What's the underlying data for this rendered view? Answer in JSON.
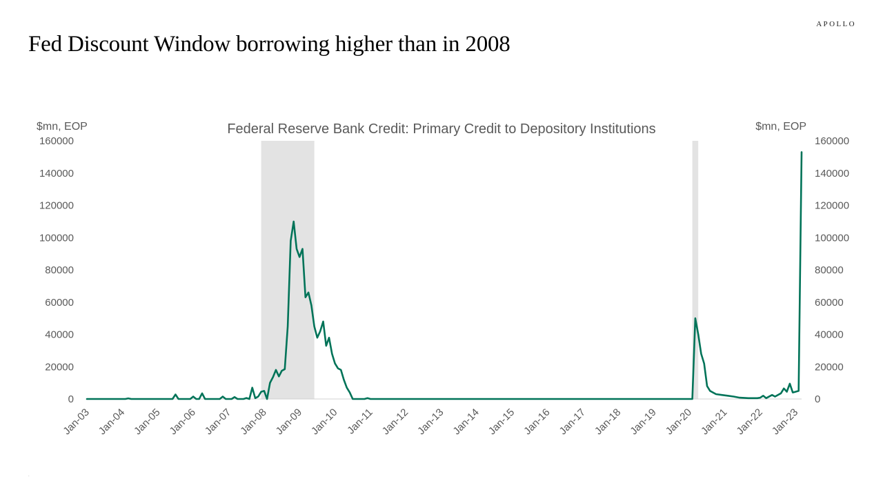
{
  "brand": "APOLLO",
  "slide_title": "Fed Discount Window borrowing higher than in 2008",
  "colors": {
    "line": "#007358",
    "recession": "#e3e3e3",
    "axis": "#d0d0d0",
    "text": "#595959"
  },
  "chart_data": {
    "type": "line",
    "title": "Federal Reserve Bank Credit: Primary Credit to Depository Institutions",
    "ylabel_left": "$mn, EOP",
    "ylabel_right": "$mn, EOP",
    "ylim": [
      0,
      160000
    ],
    "y_ticks": [
      0,
      20000,
      40000,
      60000,
      80000,
      100000,
      120000,
      140000,
      160000
    ],
    "x_tick_labels": [
      "Jan-03",
      "Jan-04",
      "Jan-05",
      "Jan-06",
      "Jan-07",
      "Jan-08",
      "Jan-09",
      "Jan-10",
      "Jan-11",
      "Jan-12",
      "Jan-13",
      "Jan-14",
      "Jan-15",
      "Jan-16",
      "Jan-17",
      "Jan-18",
      "Jan-19",
      "Jan-20",
      "Jan-21",
      "Jan-22",
      "Jan-23"
    ],
    "x_range": [
      "2003-01",
      "2023-03"
    ],
    "recessions": [
      [
        "2007-12",
        "2009-06"
      ],
      [
        "2020-02",
        "2020-04"
      ]
    ],
    "series": [
      {
        "points": [
          [
            "2003-01",
            0
          ],
          [
            "2004-02",
            0
          ],
          [
            "2004-03",
            400
          ],
          [
            "2004-04",
            0
          ],
          [
            "2005-01",
            0
          ],
          [
            "2005-06",
            0
          ],
          [
            "2005-07",
            2800
          ],
          [
            "2005-08",
            0
          ],
          [
            "2005-12",
            0
          ],
          [
            "2006-01",
            1500
          ],
          [
            "2006-02",
            0
          ],
          [
            "2006-03",
            0
          ],
          [
            "2006-04",
            3500
          ],
          [
            "2006-05",
            0
          ],
          [
            "2006-10",
            0
          ],
          [
            "2006-11",
            1500
          ],
          [
            "2006-12",
            0
          ],
          [
            "2007-02",
            0
          ],
          [
            "2007-03",
            1200
          ],
          [
            "2007-04",
            0
          ],
          [
            "2007-06",
            0
          ],
          [
            "2007-07",
            600
          ],
          [
            "2007-08",
            0
          ],
          [
            "2007-09",
            7000
          ],
          [
            "2007-10",
            500
          ],
          [
            "2007-11",
            1500
          ],
          [
            "2007-12",
            4500
          ],
          [
            "2008-01",
            5000
          ],
          [
            "2008-02",
            0
          ],
          [
            "2008-03",
            10000
          ],
          [
            "2008-04",
            13500
          ],
          [
            "2008-05",
            18000
          ],
          [
            "2008-06",
            14000
          ],
          [
            "2008-07",
            17500
          ],
          [
            "2008-08",
            18500
          ],
          [
            "2008-09",
            45000
          ],
          [
            "2008-10",
            98000
          ],
          [
            "2008-11",
            110000
          ],
          [
            "2008-12",
            93000
          ],
          [
            "2009-01",
            88000
          ],
          [
            "2009-02",
            93000
          ],
          [
            "2009-03",
            63000
          ],
          [
            "2009-04",
            66000
          ],
          [
            "2009-05",
            58000
          ],
          [
            "2009-06",
            45000
          ],
          [
            "2009-07",
            38000
          ],
          [
            "2009-08",
            42000
          ],
          [
            "2009-09",
            48000
          ],
          [
            "2009-10",
            33000
          ],
          [
            "2009-11",
            38000
          ],
          [
            "2009-12",
            28000
          ],
          [
            "2010-01",
            22000
          ],
          [
            "2010-02",
            19000
          ],
          [
            "2010-03",
            18000
          ],
          [
            "2010-04",
            12000
          ],
          [
            "2010-05",
            7000
          ],
          [
            "2010-06",
            4000
          ],
          [
            "2010-07",
            0
          ],
          [
            "2010-11",
            0
          ],
          [
            "2010-12",
            500
          ],
          [
            "2011-01",
            0
          ],
          [
            "2020-02",
            0
          ],
          [
            "2020-03",
            50000
          ],
          [
            "2020-04",
            40000
          ],
          [
            "2020-05",
            28000
          ],
          [
            "2020-06",
            22000
          ],
          [
            "2020-07",
            8000
          ],
          [
            "2020-08",
            5000
          ],
          [
            "2020-10",
            3000
          ],
          [
            "2020-12",
            2500
          ],
          [
            "2021-02",
            2000
          ],
          [
            "2021-04",
            1500
          ],
          [
            "2021-06",
            800
          ],
          [
            "2021-09",
            500
          ],
          [
            "2021-12",
            500
          ],
          [
            "2022-01",
            800
          ],
          [
            "2022-02",
            2000
          ],
          [
            "2022-03",
            500
          ],
          [
            "2022-05",
            2500
          ],
          [
            "2022-06",
            1500
          ],
          [
            "2022-08",
            3500
          ],
          [
            "2022-09",
            6500
          ],
          [
            "2022-10",
            4500
          ],
          [
            "2022-11",
            9500
          ],
          [
            "2022-12",
            4000
          ],
          [
            "2023-01",
            4500
          ],
          [
            "2023-02",
            5000
          ],
          [
            "2023-03",
            153000
          ]
        ]
      }
    ],
    "grid": false,
    "legend": "none"
  }
}
